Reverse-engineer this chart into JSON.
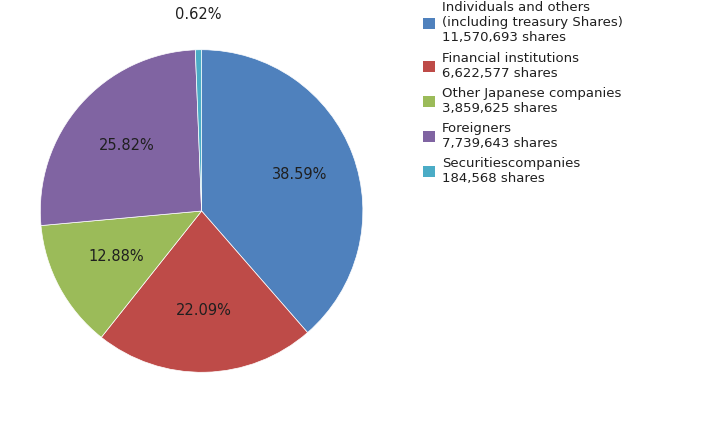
{
  "labels": [
    "Individuals and others\n(including treasury Shares)\n11,570,693 shares",
    "Financial institutions\n6,622,577 shares",
    "Other Japanese companies\n3,859,625 shares",
    "Foreigners\n7,739,643 shares",
    "Securitiescompanies\n184,568 shares"
  ],
  "pct_labels": [
    "38.59%",
    "22.09%",
    "12.88%",
    "25.82%",
    "0.62%"
  ],
  "values": [
    38.59,
    22.09,
    12.88,
    25.82,
    0.62
  ],
  "colors": [
    "#4F81BD",
    "#BE4B48",
    "#9BBB59",
    "#8064A2",
    "#4BACC6"
  ],
  "startangle": 90,
  "figsize": [
    7.2,
    4.22
  ],
  "dpi": 100,
  "background_color": "#FFFFFF",
  "label_color": "#1F1F1F",
  "pct_r": [
    0.65,
    0.62,
    0.6,
    0.62,
    1.22
  ],
  "pct_fontsize": 10.5,
  "legend_fontsize": 9.5
}
